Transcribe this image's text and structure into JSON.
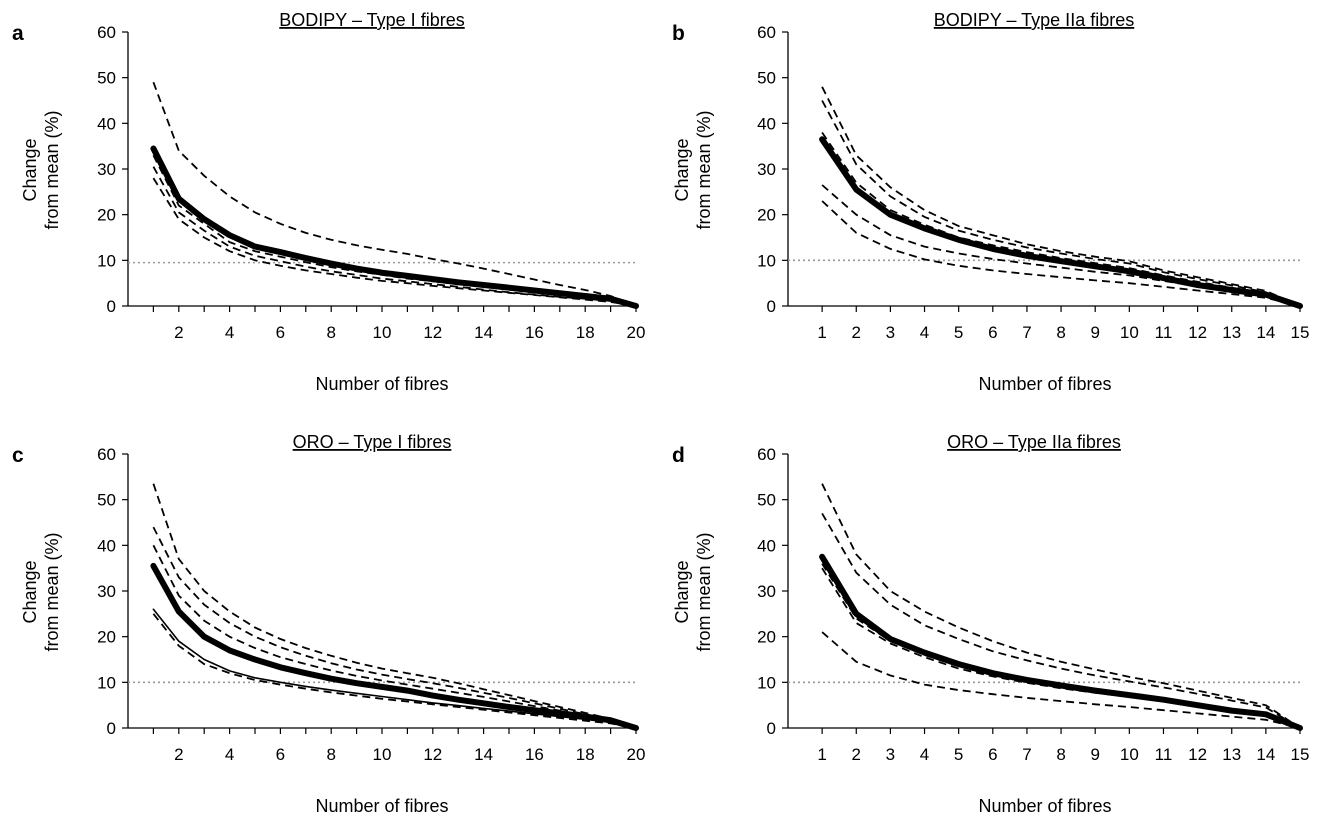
{
  "chart_data": [
    {
      "panel": "a",
      "type": "line",
      "title": "BODIPY – Type I fibres",
      "xlabel": "Number of fibres",
      "ylabel": [
        "Change",
        "from mean (%)"
      ],
      "xlim": [
        0,
        20
      ],
      "ylim": [
        0,
        60
      ],
      "yticks": [
        0,
        10,
        20,
        30,
        40,
        50,
        60
      ],
      "xticks": [
        2,
        4,
        6,
        8,
        10,
        12,
        14,
        16,
        18,
        20
      ],
      "reference_line_y": 9.5,
      "x": [
        1,
        2,
        3,
        4,
        5,
        6,
        7,
        8,
        9,
        10,
        11,
        12,
        13,
        14,
        15,
        16,
        17,
        18,
        19,
        20
      ],
      "series": [
        {
          "style": "solid-thick",
          "values": [
            34.5,
            23.5,
            19,
            15.5,
            13,
            11.8,
            10.5,
            9.3,
            8.2,
            7.3,
            6.6,
            5.9,
            5.2,
            4.6,
            4.0,
            3.4,
            2.8,
            2.2,
            1.6,
            0
          ]
        },
        {
          "style": "dashed",
          "values": [
            49,
            34,
            28.5,
            24,
            20.5,
            18,
            16,
            14.5,
            13.3,
            12.3,
            11.4,
            10.3,
            9.3,
            8.2,
            7.0,
            5.8,
            4.6,
            3.5,
            2.2,
            0
          ]
        },
        {
          "style": "dashed",
          "values": [
            33,
            22,
            18,
            14,
            12,
            10.8,
            9.6,
            8.5,
            7.6,
            6.8,
            6.0,
            5.4,
            4.8,
            4.2,
            3.6,
            3.0,
            2.5,
            2.0,
            1.4,
            0
          ]
        },
        {
          "style": "dashed",
          "values": [
            30.5,
            20.5,
            16.5,
            13,
            11,
            9.8,
            8.6,
            7.6,
            6.8,
            6.0,
            5.4,
            4.8,
            4.2,
            3.6,
            3.0,
            2.5,
            2.0,
            1.6,
            1.1,
            0
          ]
        },
        {
          "style": "dashed",
          "values": [
            28,
            19,
            15,
            12,
            10,
            8.8,
            7.8,
            7.0,
            6.2,
            5.5,
            5.0,
            4.4,
            3.9,
            3.4,
            2.9,
            2.4,
            1.9,
            1.4,
            0.9,
            0
          ]
        }
      ]
    },
    {
      "panel": "b",
      "type": "line",
      "title": "BODIPY – Type IIa fibres",
      "xlabel": "Number of fibres",
      "ylabel": [
        "Change",
        "from mean (%)"
      ],
      "xlim": [
        0,
        15
      ],
      "ylim": [
        0,
        60
      ],
      "yticks": [
        0,
        10,
        20,
        30,
        40,
        50,
        60
      ],
      "xticks": [
        1,
        2,
        3,
        4,
        5,
        6,
        7,
        8,
        9,
        10,
        11,
        12,
        13,
        14,
        15
      ],
      "reference_line_y": 10,
      "x": [
        1,
        2,
        3,
        4,
        5,
        6,
        7,
        8,
        9,
        10,
        11,
        12,
        13,
        14,
        15
      ],
      "series": [
        {
          "style": "solid-thick",
          "values": [
            36.5,
            25.5,
            20,
            17,
            14.5,
            12.5,
            11,
            9.8,
            8.7,
            7.6,
            6.1,
            4.6,
            3.5,
            2.5,
            0
          ]
        },
        {
          "style": "dashed",
          "values": [
            48,
            33,
            26,
            21,
            17.5,
            15.5,
            13.5,
            12,
            10.8,
            9.8,
            7.8,
            6.3,
            4.8,
            3.3,
            0
          ]
        },
        {
          "style": "dashed",
          "values": [
            45,
            31,
            24,
            19.5,
            16.5,
            14.5,
            12.8,
            11.5,
            10.3,
            9.3,
            7.4,
            5.9,
            4.5,
            3.0,
            0
          ]
        },
        {
          "style": "dashed",
          "values": [
            38,
            27,
            21,
            17.8,
            15,
            13.3,
            11.8,
            10.5,
            9.4,
            8.3,
            6.7,
            5.3,
            4.0,
            2.8,
            0
          ]
        },
        {
          "style": "dashed",
          "values": [
            26.5,
            20,
            15.5,
            13,
            11.5,
            10.3,
            9.3,
            8.4,
            7.5,
            6.7,
            5.5,
            4.3,
            3.3,
            2.2,
            0
          ]
        },
        {
          "style": "dashed",
          "values": [
            23,
            16,
            12.5,
            10.2,
            8.8,
            7.8,
            7.0,
            6.3,
            5.6,
            5.0,
            4.2,
            3.4,
            2.6,
            1.8,
            0
          ]
        }
      ]
    },
    {
      "panel": "c",
      "type": "line",
      "title": "ORO – Type I fibres",
      "xlabel": "Number of fibres",
      "ylabel": [
        "Change",
        "from mean (%)"
      ],
      "xlim": [
        0,
        20
      ],
      "ylim": [
        0,
        60
      ],
      "yticks": [
        0,
        10,
        20,
        30,
        40,
        50,
        60
      ],
      "xticks": [
        2,
        4,
        6,
        8,
        10,
        12,
        14,
        16,
        18,
        20
      ],
      "reference_line_y": 10,
      "x": [
        1,
        2,
        3,
        4,
        5,
        6,
        7,
        8,
        9,
        10,
        11,
        12,
        13,
        14,
        15,
        16,
        17,
        18,
        19,
        20
      ],
      "series": [
        {
          "style": "solid-thick",
          "values": [
            35.5,
            25.5,
            20,
            17,
            15,
            13.3,
            12,
            10.8,
            9.8,
            9.0,
            8.2,
            7.1,
            6.2,
            5.4,
            4.6,
            3.9,
            3.2,
            2.5,
            1.7,
            0
          ]
        },
        {
          "style": "dashed",
          "values": [
            53.5,
            37,
            30,
            25.5,
            22,
            19.5,
            17.5,
            15.8,
            14.3,
            13,
            12,
            11,
            9.8,
            8.5,
            7.2,
            5.9,
            4.6,
            3.3,
            2.0,
            0
          ]
        },
        {
          "style": "dashed",
          "values": [
            44,
            33,
            27,
            23,
            20,
            17.7,
            15.8,
            14.2,
            12.8,
            11.7,
            10.7,
            9.8,
            8.8,
            7.7,
            6.6,
            5.4,
            4.2,
            3.0,
            1.9,
            0
          ]
        },
        {
          "style": "dashed",
          "values": [
            40,
            29,
            23.5,
            20,
            17.5,
            15.5,
            14,
            12.6,
            11.4,
            10.4,
            9.5,
            8.6,
            7.7,
            6.8,
            5.8,
            4.8,
            3.8,
            2.8,
            1.7,
            0
          ]
        },
        {
          "style": "solid-thin",
          "values": [
            26,
            19,
            15,
            12.5,
            11,
            10,
            9.1,
            8.3,
            7.6,
            6.9,
            6.2,
            5.5,
            4.9,
            4.3,
            3.7,
            3.1,
            2.5,
            1.9,
            1.2,
            0
          ]
        },
        {
          "style": "dashed",
          "values": [
            25,
            18,
            14,
            12,
            10.5,
            9.5,
            8.6,
            7.8,
            7.1,
            6.4,
            5.8,
            5.2,
            4.6,
            4.0,
            3.4,
            2.8,
            2.2,
            1.6,
            1.0,
            0
          ]
        }
      ]
    },
    {
      "panel": "d",
      "type": "line",
      "title": "ORO – Type IIa fibres",
      "xlabel": "Number of fibres",
      "ylabel": [
        "Change",
        "from mean (%)"
      ],
      "xlim": [
        0,
        15
      ],
      "ylim": [
        0,
        60
      ],
      "yticks": [
        0,
        10,
        20,
        30,
        40,
        50,
        60
      ],
      "xticks": [
        1,
        2,
        3,
        4,
        5,
        6,
        7,
        8,
        9,
        10,
        11,
        12,
        13,
        14,
        15
      ],
      "reference_line_y": 10,
      "x": [
        1,
        2,
        3,
        4,
        5,
        6,
        7,
        8,
        9,
        10,
        11,
        12,
        13,
        14,
        15
      ],
      "series": [
        {
          "style": "solid-thick",
          "values": [
            37.5,
            25,
            19.5,
            16.5,
            14,
            12,
            10.5,
            9.3,
            8.2,
            7.2,
            6.2,
            5.0,
            3.8,
            3.0,
            0
          ]
        },
        {
          "style": "dashed",
          "values": [
            53.5,
            38,
            30,
            25.5,
            22,
            19,
            16.5,
            14.5,
            12.8,
            11.2,
            9.8,
            8.2,
            6.6,
            5.0,
            0
          ]
        },
        {
          "style": "dashed",
          "values": [
            47,
            34,
            27,
            22.5,
            19.5,
            16.8,
            14.8,
            13,
            11.5,
            10.2,
            8.9,
            7.5,
            6.0,
            4.5,
            0
          ]
        },
        {
          "style": "dashed",
          "values": [
            36,
            24,
            19,
            16,
            13.5,
            11.8,
            10.3,
            9.1,
            8.0,
            7.0,
            6.0,
            4.9,
            3.8,
            2.7,
            0
          ]
        },
        {
          "style": "dashed",
          "values": [
            35,
            23,
            18.5,
            15.5,
            13,
            11.3,
            9.9,
            8.7,
            7.7,
            6.8,
            5.8,
            4.8,
            3.7,
            2.6,
            0
          ]
        },
        {
          "style": "dashed",
          "values": [
            21,
            14.5,
            11.5,
            9.5,
            8.3,
            7.4,
            6.6,
            5.9,
            5.2,
            4.6,
            3.9,
            3.2,
            2.5,
            1.8,
            0
          ]
        }
      ]
    }
  ]
}
